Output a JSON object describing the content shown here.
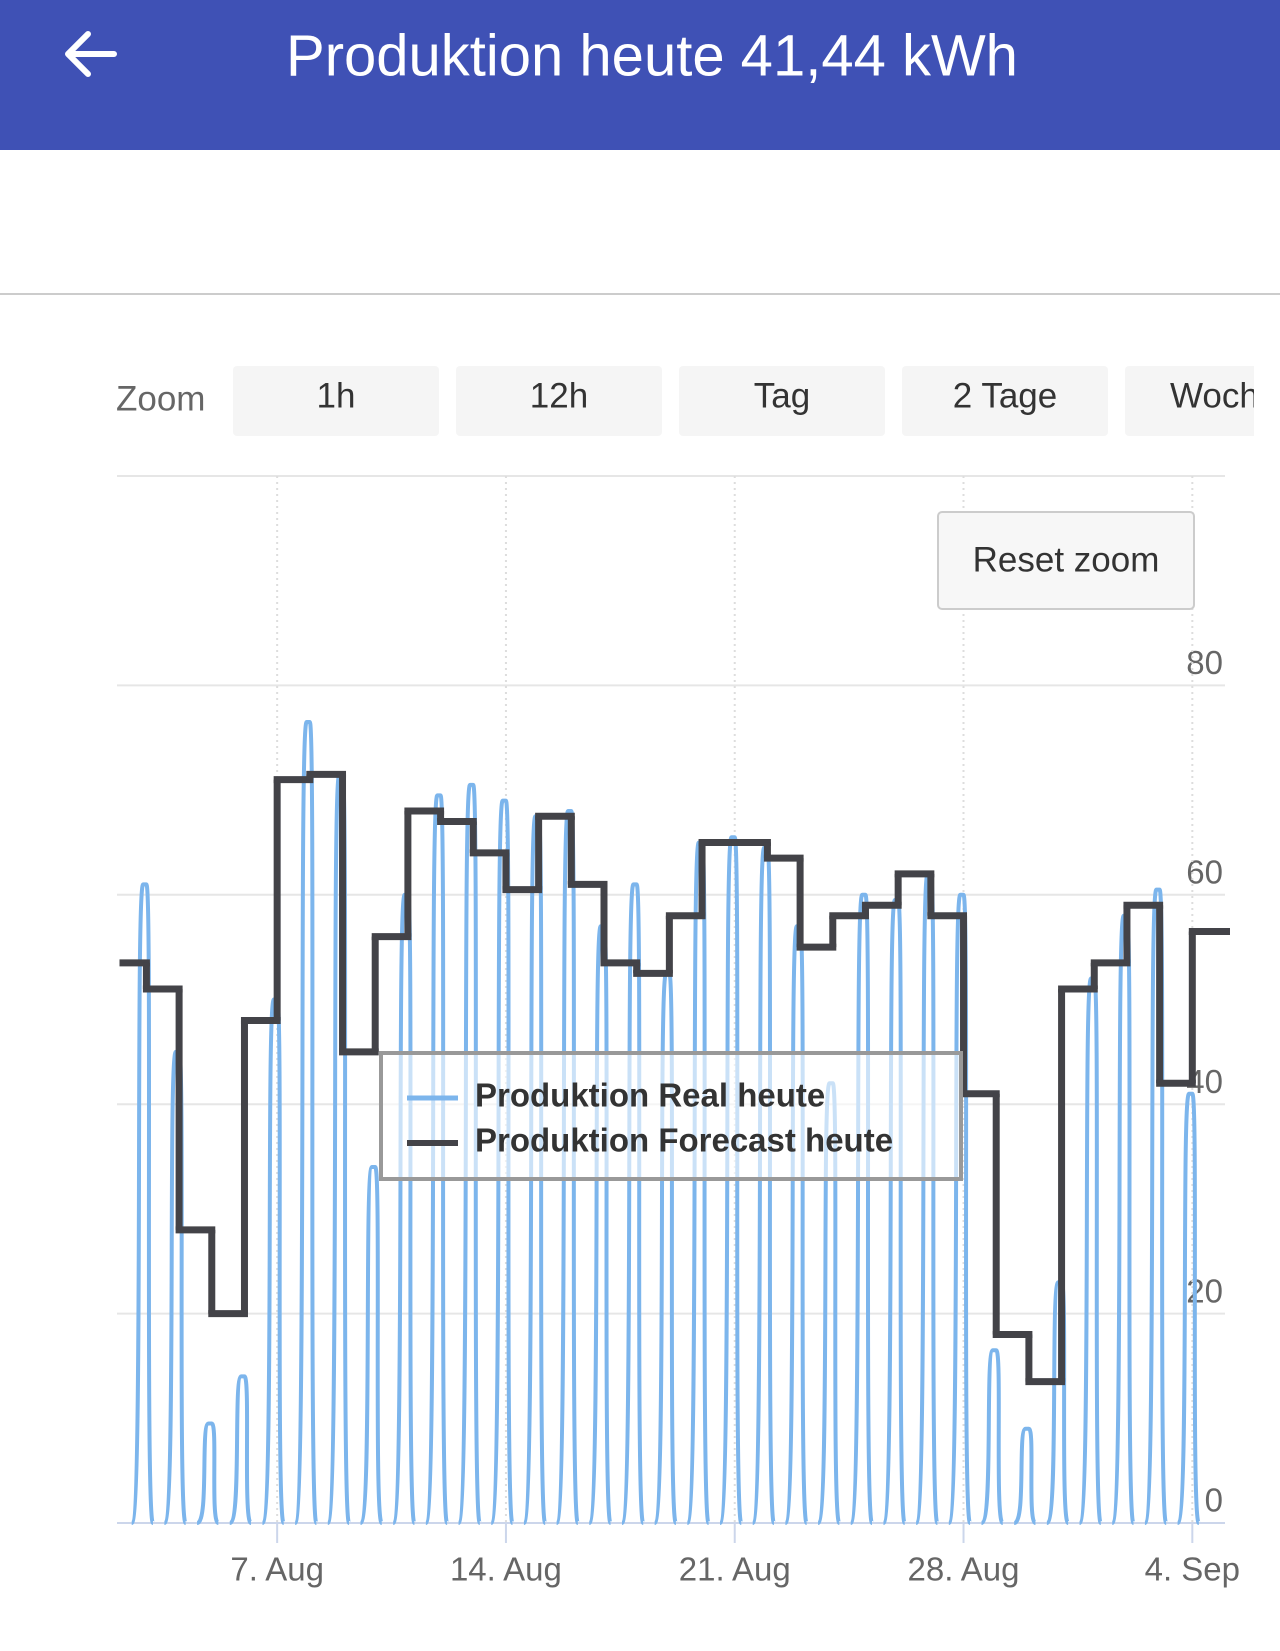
{
  "header": {
    "title": "Produktion heute 41,44 kWh"
  },
  "zoom": {
    "label": "Zoom",
    "buttons": [
      "1h",
      "12h",
      "Tag",
      "2 Tage",
      "Woche"
    ]
  },
  "reset_zoom": "Reset zoom",
  "chart_data": {
    "type": "line",
    "x": [
      2,
      3,
      4,
      5,
      6,
      7,
      8,
      9,
      10,
      11,
      12,
      13,
      14,
      15,
      16,
      17,
      18,
      19,
      20,
      21,
      22,
      23,
      24,
      25,
      26,
      27,
      28,
      29,
      30,
      31,
      32,
      33,
      34,
      35
    ],
    "series": [
      {
        "name": "Produktion Real heute",
        "color": "#7cb5ec",
        "style": "daily-curve",
        "values": [
          61,
          45,
          9.5,
          14,
          50,
          76.5,
          71.5,
          34,
          60,
          69.5,
          70.5,
          69,
          67.5,
          68,
          57,
          61,
          52.5,
          65,
          65.5,
          64.5,
          57,
          42,
          60,
          59.5,
          62,
          60,
          16.5,
          9,
          23,
          52,
          58,
          60.5,
          41,
          null
        ]
      },
      {
        "name": "Produktion Forecast heute",
        "color": "#434348",
        "style": "step",
        "values": [
          53.5,
          51,
          28,
          20,
          48,
          71,
          71.5,
          45,
          56,
          68,
          67,
          64,
          60.5,
          67.5,
          61,
          53.5,
          52.5,
          58,
          65,
          65,
          63.5,
          55,
          58,
          59,
          62,
          58,
          41,
          18,
          13.5,
          51,
          53.5,
          59,
          42,
          56.5
        ]
      }
    ],
    "xlim": [
      2.1,
      36
    ],
    "xticks": [
      {
        "value": 7,
        "label": "7. Aug"
      },
      {
        "value": 14,
        "label": "14. Aug"
      },
      {
        "value": 21,
        "label": "21. Aug"
      },
      {
        "value": 28,
        "label": "28. Aug"
      },
      {
        "value": 35,
        "label": "4. Sep"
      }
    ],
    "ylim": [
      0,
      100
    ],
    "yticks": [
      0,
      20,
      40,
      60,
      80
    ],
    "grid": true
  }
}
